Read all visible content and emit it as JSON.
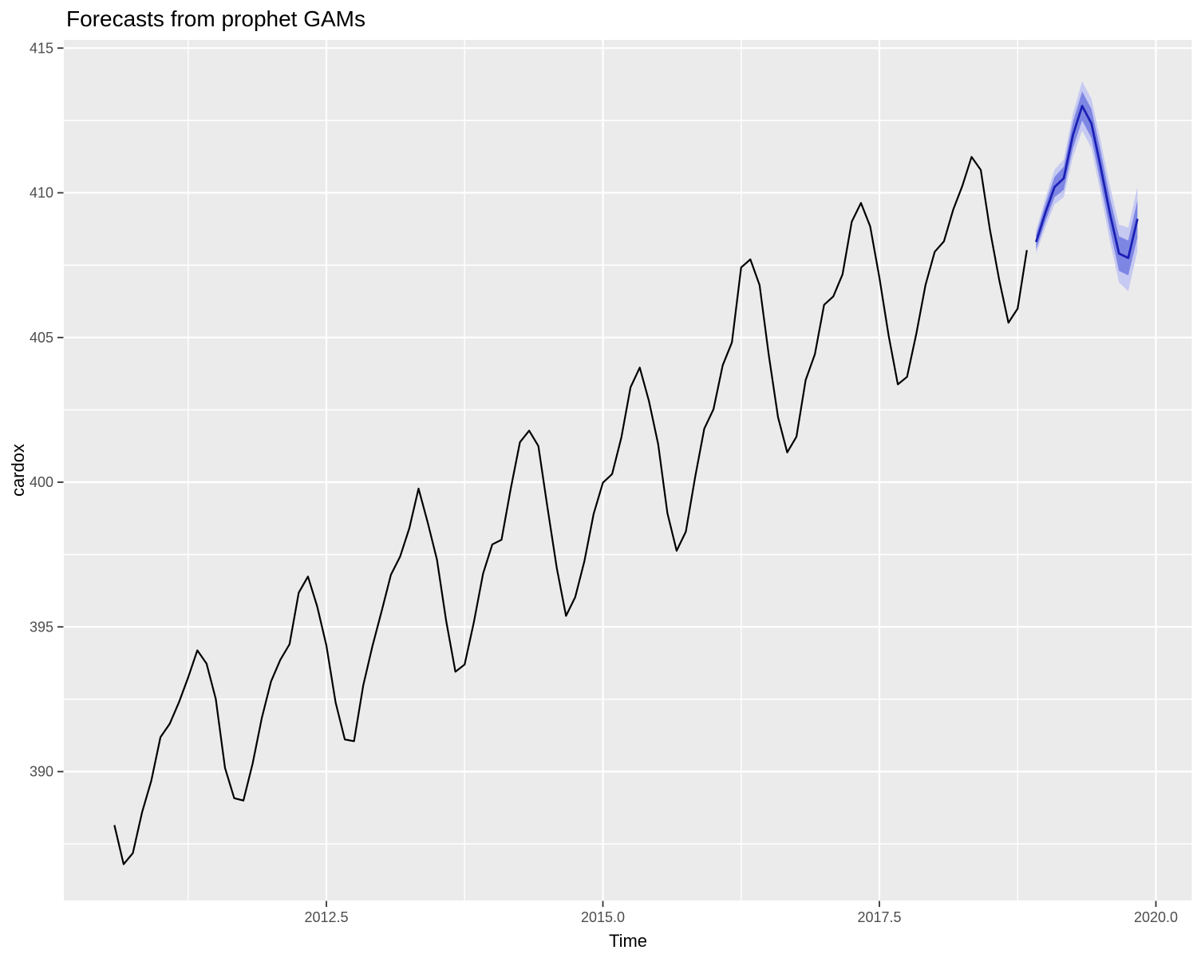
{
  "window": {
    "kind": "r-plot-pane"
  },
  "chart_data": {
    "type": "line",
    "title": "Forecasts from prophet GAMs",
    "xlabel": "Time",
    "ylabel": "cardox",
    "legend_position": "none",
    "grid": "white major and minor gridlines on gray panel",
    "xlim": [
      2010.13,
      2020.32
    ],
    "ylim": [
      385.5,
      415.3
    ],
    "x_ticks": [
      2012.5,
      2015.0,
      2017.5,
      2020.0
    ],
    "x_tick_labels": [
      "2012.5",
      "2015.0",
      "2017.5",
      "2020.0"
    ],
    "x_minor_ticks": [
      2011.25,
      2013.75,
      2016.25,
      2018.75
    ],
    "y_ticks": [
      390,
      395,
      400,
      405,
      410,
      415
    ],
    "y_tick_labels": [
      "390",
      "395",
      "400",
      "405",
      "410",
      "415"
    ],
    "y_minor_ticks": [
      387.5,
      392.5,
      397.5,
      402.5,
      407.5,
      412.5
    ],
    "series": [
      {
        "name": "observed-cardox-monthly",
        "color": "#000000",
        "line_width": 2.2,
        "x_start": 2010.58333,
        "x_step_years": 0.0833333,
        "values": [
          388.15,
          386.8,
          387.18,
          388.59,
          389.68,
          391.19,
          391.65,
          392.39,
          393.25,
          394.19,
          393.73,
          392.51,
          390.13,
          389.08,
          389.0,
          390.28,
          391.86,
          393.12,
          393.86,
          394.4,
          396.18,
          396.74,
          395.71,
          394.36,
          392.39,
          391.11,
          391.05,
          392.98,
          394.34,
          395.55,
          396.8,
          397.43,
          398.41,
          399.78,
          398.6,
          397.32,
          395.2,
          393.45,
          393.7,
          395.16,
          396.84,
          397.85,
          398.01,
          399.77,
          401.38,
          401.78,
          401.25,
          399.1,
          397.03,
          395.38,
          396.03,
          397.28,
          398.91,
          399.98,
          400.28,
          401.54,
          403.28,
          403.96,
          402.8,
          401.31,
          398.93,
          397.63,
          398.29,
          400.16,
          401.85,
          402.52,
          404.04,
          404.83,
          407.42,
          407.7,
          406.81,
          404.39,
          402.25,
          401.03,
          401.57,
          403.53,
          404.42,
          406.13,
          406.42,
          407.18,
          409.0,
          409.65,
          408.84,
          407.07,
          405.07,
          403.38,
          403.64,
          405.12,
          406.81,
          407.96,
          408.32,
          409.41,
          410.24,
          411.24,
          410.79,
          408.71,
          406.99,
          405.51,
          406.0,
          408.02
        ]
      },
      {
        "name": "forecast-mean",
        "color": "#1b20b5",
        "line_width": 2.8,
        "x_start": 2018.91667,
        "x_step_years": 0.0833333,
        "values": [
          408.3,
          409.3,
          410.2,
          410.5,
          412.0,
          413.0,
          412.4,
          410.9,
          409.3,
          407.9,
          407.75,
          409.1
        ]
      }
    ],
    "intervals": [
      {
        "level": 95,
        "fill": "#c6c9f1",
        "x_start": 2018.91667,
        "x_step_years": 0.0833333,
        "lo": [
          407.9,
          408.8,
          409.6,
          409.85,
          411.25,
          412.15,
          411.55,
          410.0,
          408.35,
          406.9,
          406.6,
          408.0
        ],
        "hi": [
          408.7,
          409.8,
          410.8,
          411.15,
          412.75,
          413.85,
          413.25,
          411.8,
          410.25,
          408.9,
          408.8,
          410.2
        ]
      },
      {
        "level": 80,
        "fill": "#7e86e3",
        "x_start": 2018.91667,
        "x_step_years": 0.0833333,
        "lo": [
          408.05,
          409.0,
          409.85,
          410.1,
          411.55,
          412.5,
          411.9,
          410.35,
          408.75,
          407.3,
          407.15,
          408.45
        ],
        "hi": [
          408.55,
          409.6,
          410.55,
          410.9,
          412.45,
          413.5,
          412.9,
          411.45,
          409.85,
          408.5,
          408.35,
          409.75
        ]
      }
    ],
    "colors": {
      "panel_background": "#ebebeb",
      "gridline": "#ffffff",
      "tick_mark": "#333333",
      "tick_label": "#4d4d4d",
      "title": "#000000"
    }
  }
}
